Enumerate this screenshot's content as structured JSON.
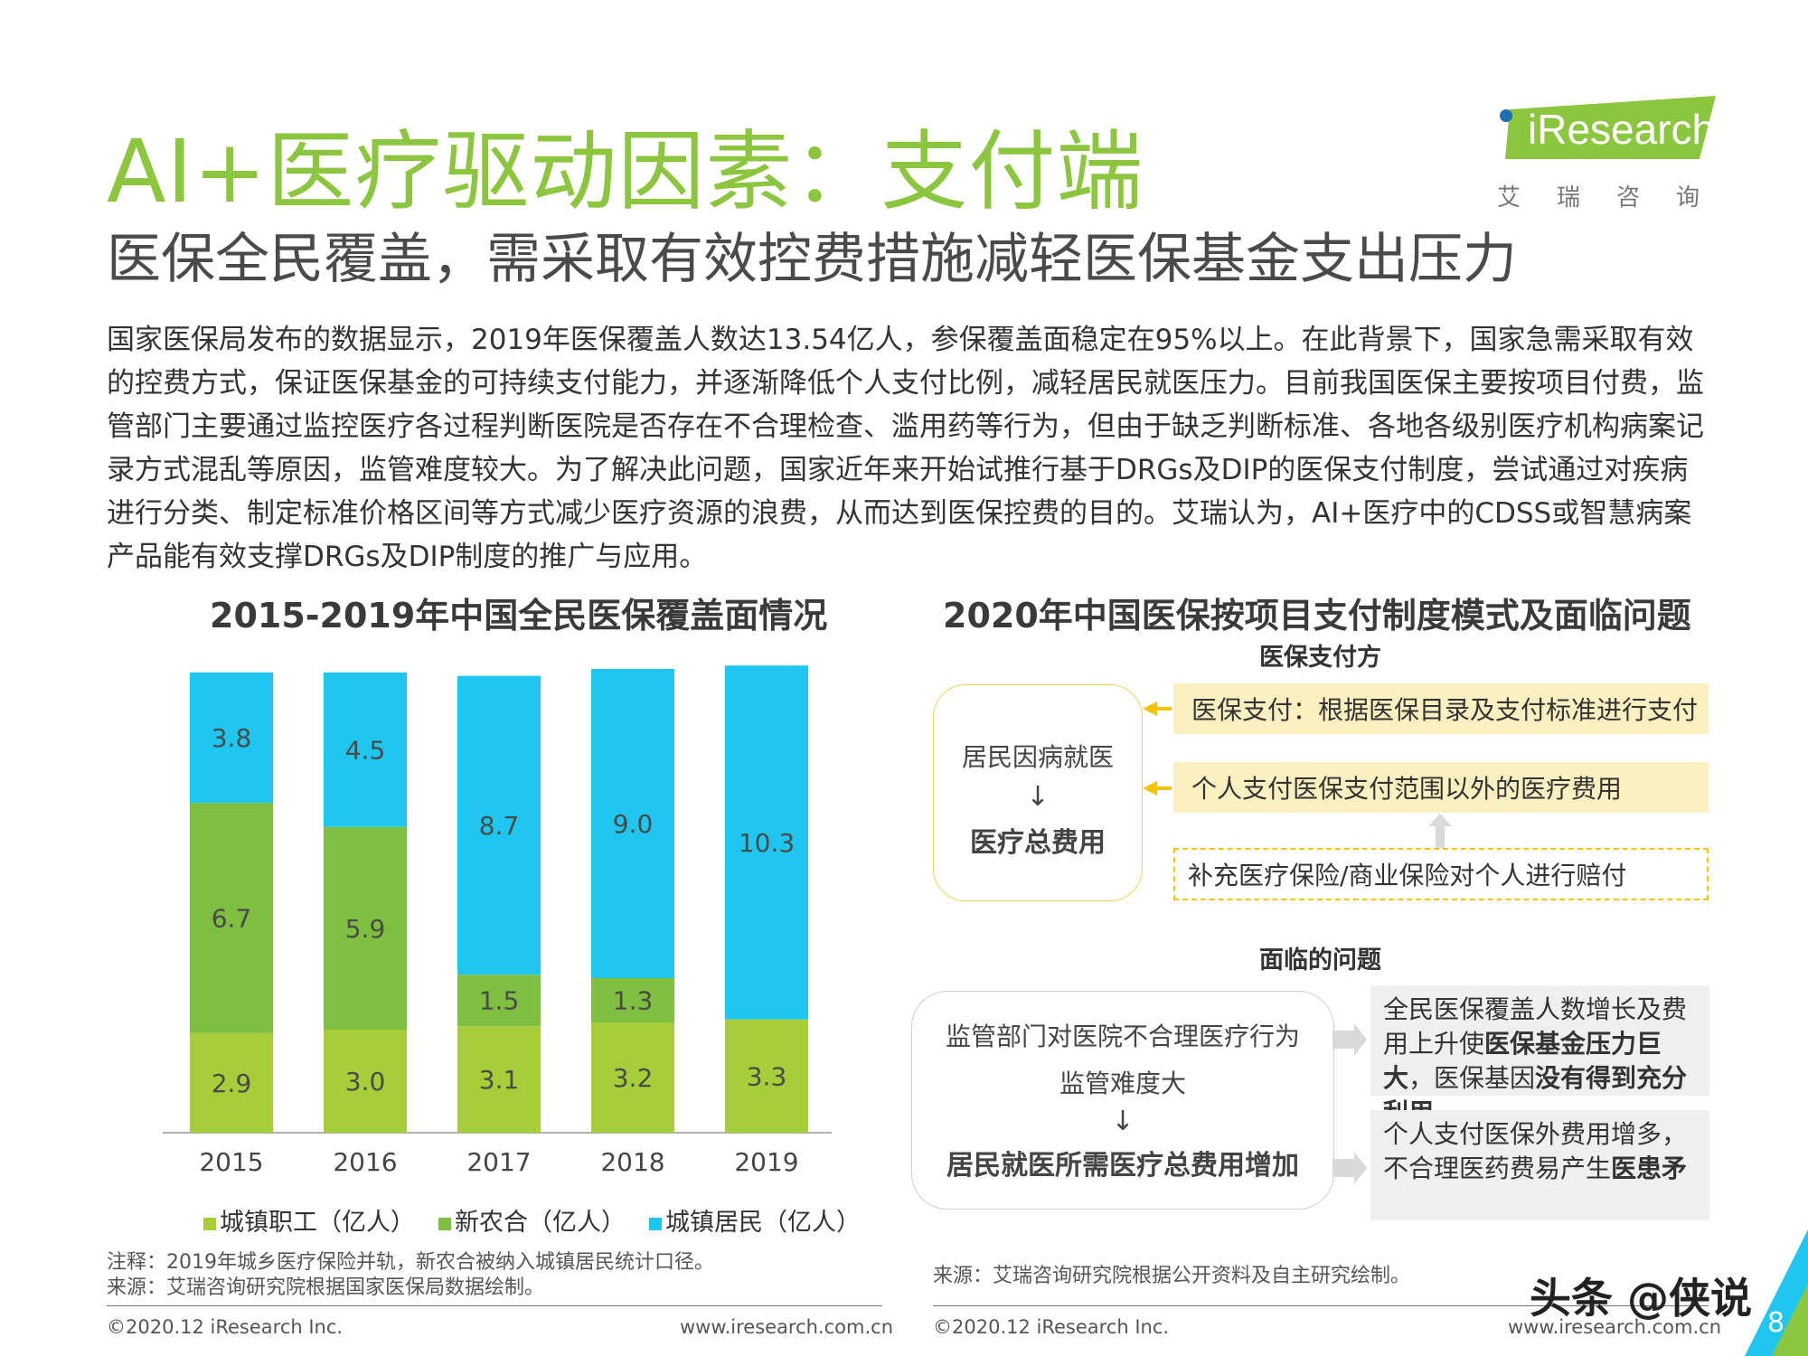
{
  "page": {
    "title": "AI+医疗驱动因素：支付端",
    "subtitle": "医保全民覆盖，需采取有效控费措施减轻医保基金支出压力",
    "paragraph": "国家医保局发布的数据显示，2019年医保覆盖人数达13.54亿人，参保覆盖面稳定在95%以上。在此背景下，国家急需采取有效的控费方式，保证医保基金的可持续支付能力，并逐渐降低个人支付比例，减轻居民就医压力。目前我国医保主要按项目付费，监管部门主要通过监控医疗各过程判断医院是否存在不合理检查、滥用药等行为，但由于缺乏判断标准、各地各级别医疗机构病案记录方式混乱等原因，监管难度较大。为了解决此问题，国家近年来开始试推行基于DRGs及DIP的医保支付制度，尝试通过对疾病进行分类、制定标准价格区间等方式减少医疗资源的浪费，从而达到医保控费的目的。艾瑞认为，AI+医疗中的CDSS或智慧病案产品能有效支撑DRGs及DIP制度的推广与应用。",
    "page_number": "8",
    "watermark": "头条 @侠说"
  },
  "logo": {
    "name": "iResearch",
    "sub": "艾瑞咨询"
  },
  "left": {
    "note": "注释：2019年城乡医疗保险并轨，新农合被纳入城镇居民统计口径。",
    "source": "来源：艾瑞咨询研究院根据国家医保局数据绘制。",
    "copyright": "©2020.12 iResearch Inc.",
    "url": "www.iresearch.com.cn"
  },
  "right": {
    "title": "2020年中国医保按项目支付制度模式及面临问题",
    "payer_label": "医保支付方",
    "left_box_line1": "居民因病就医",
    "arrow": "↓",
    "left_box_line2": "医疗总费用",
    "bar1": "医保支付：根据医保目录及支付标准进行支付",
    "bar2": "个人支付医保支付范围以外的医疗费用",
    "bar3": "补充医疗保险/商业保险对个人进行赔付",
    "problems_label": "面临的问题",
    "problem_line1": "监管部门对医院不合理医疗行为",
    "problem_line2": "监管难度大",
    "problem_line3": "居民就医所需医疗总费用增加",
    "g1_a": "全民医保覆盖人数增长及费用上升使",
    "g1_b": "医保基金压力巨大",
    "g1_c": "，医保基因",
    "g1_d": "没有得到充分利用",
    "g2_a": "个人支付医保外费用增多，不合理医药费易产生",
    "g2_b": "医患矛",
    "source": "来源：艾瑞咨询研究院根据公开资料及自主研究绘制。",
    "copyright": "©2020.12 iResearch Inc.",
    "url": "www.iresearch.com.cn"
  },
  "colors": {
    "title_green": "#8cc63f",
    "urban_employee": "#a6ce39",
    "ncms": "#7fbf3f",
    "urban_resident": "#1fc6f0",
    "bar_yellow": "#fcefc0",
    "dash_yellow": "#f5c300",
    "gray_box": "#efefef"
  },
  "chart_data": {
    "type": "bar",
    "stacked": true,
    "title": "2015-2019年中国全民医保覆盖面情况",
    "categories": [
      "2015",
      "2016",
      "2017",
      "2018",
      "2019"
    ],
    "series": [
      {
        "name": "城镇职工（亿人）",
        "values": [
          2.9,
          3.0,
          3.1,
          3.2,
          3.3
        ]
      },
      {
        "name": "新农合（亿人）",
        "values": [
          6.7,
          5.9,
          1.5,
          1.3,
          null
        ]
      },
      {
        "name": "城镇居民（亿人）",
        "values": [
          3.8,
          4.5,
          8.7,
          9.0,
          10.3
        ]
      }
    ],
    "legend": "bottom",
    "grid": false
  }
}
